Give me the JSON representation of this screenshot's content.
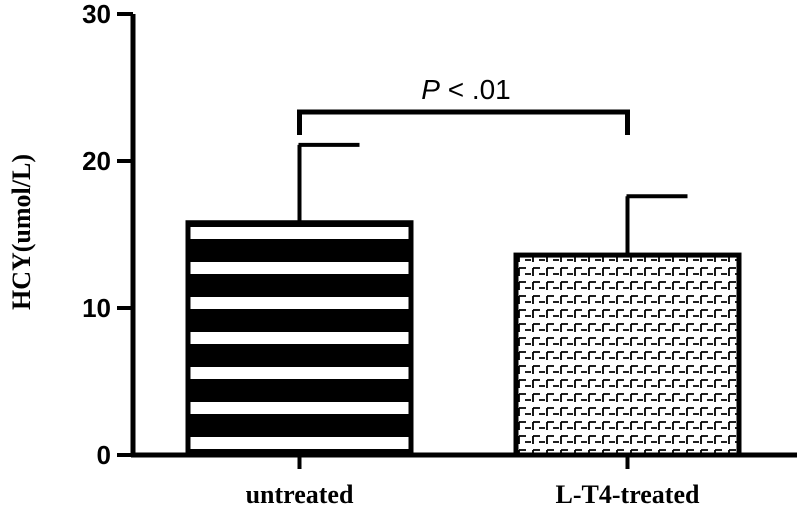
{
  "chart_data": {
    "type": "bar",
    "categories": [
      "untreated",
      "L-T4-treated"
    ],
    "values": [
      15.8,
      13.6
    ],
    "error_plus": [
      5.3,
      4.0
    ],
    "ylabel": "HCY(umol/L)",
    "ylim": [
      0,
      30
    ],
    "yticks": [
      0,
      10,
      20,
      30
    ],
    "ytick_labels": [
      "0",
      "10",
      "20",
      "30"
    ],
    "grid": false,
    "annotation": {
      "p_symbol": "P",
      "p_text": " < .01"
    },
    "patterns": [
      "horizontal-stripes",
      "brick-hatch"
    ]
  }
}
